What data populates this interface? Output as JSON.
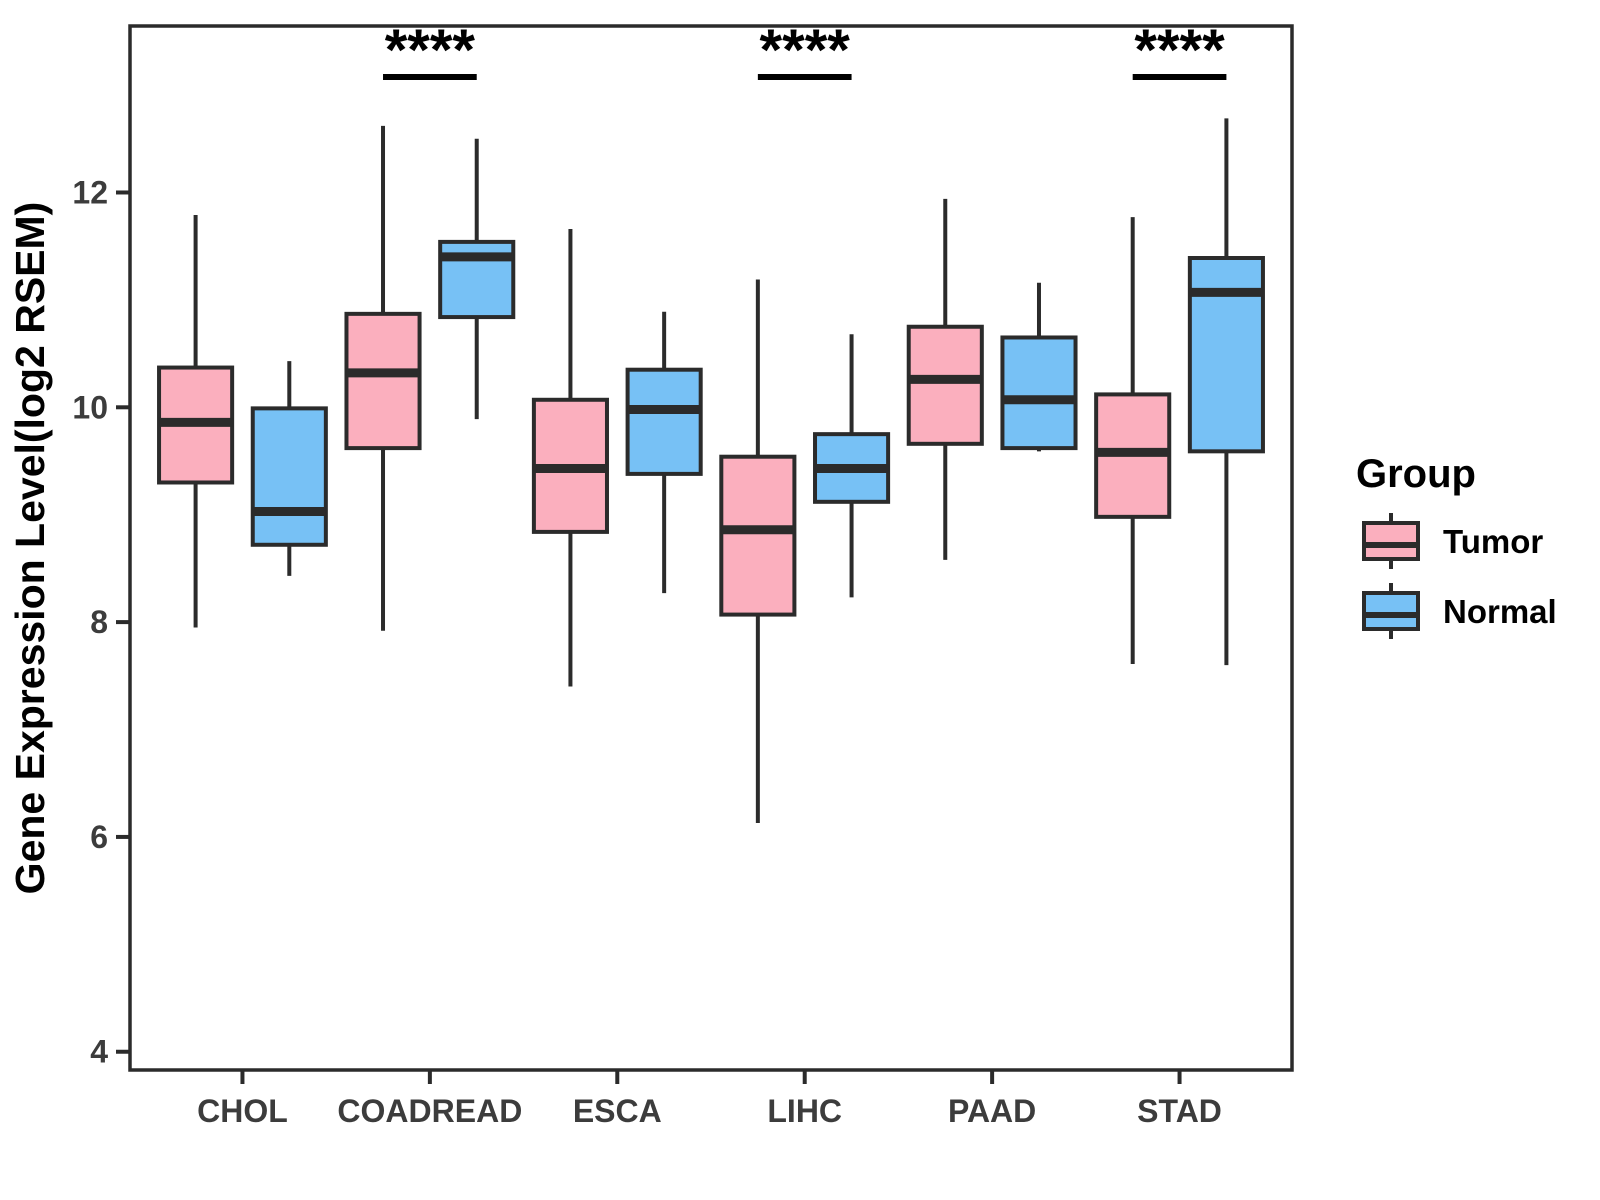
{
  "chart_data": {
    "type": "boxplot",
    "title": "",
    "xlabel": "",
    "ylabel": "Gene Expression Level(log2 RSEM)",
    "categories": [
      "CHOL",
      "COADREAD",
      "ESCA",
      "LIHC",
      "PAAD",
      "STAD"
    ],
    "yticks": [
      4,
      6,
      8,
      10,
      12
    ],
    "ylim": [
      3.83,
      13.55
    ],
    "grid": false,
    "legend_position": "right",
    "series": [
      {
        "name": "Tumor",
        "color": "#FBAFBE",
        "boxes": [
          {
            "min": 7.95,
            "q1": 9.3,
            "median": 9.86,
            "q3": 10.37,
            "max": 11.79
          },
          {
            "min": 7.92,
            "q1": 9.62,
            "median": 10.32,
            "q3": 10.87,
            "max": 12.62
          },
          {
            "min": 7.4,
            "q1": 8.84,
            "median": 9.43,
            "q3": 10.07,
            "max": 11.66
          },
          {
            "min": 6.13,
            "q1": 8.07,
            "median": 8.86,
            "q3": 9.54,
            "max": 11.19
          },
          {
            "min": 8.58,
            "q1": 9.66,
            "median": 10.26,
            "q3": 10.75,
            "max": 11.94
          },
          {
            "min": 7.61,
            "q1": 8.98,
            "median": 9.58,
            "q3": 10.12,
            "max": 11.77
          }
        ]
      },
      {
        "name": "Normal",
        "color": "#77C1F5",
        "boxes": [
          {
            "min": 8.43,
            "q1": 8.72,
            "median": 9.03,
            "q3": 9.99,
            "max": 10.43
          },
          {
            "min": 9.89,
            "q1": 10.84,
            "median": 11.4,
            "q3": 11.54,
            "max": 12.5
          },
          {
            "min": 8.27,
            "q1": 9.38,
            "median": 9.98,
            "q3": 10.35,
            "max": 10.89
          },
          {
            "min": 8.23,
            "q1": 9.12,
            "median": 9.43,
            "q3": 9.75,
            "max": 10.68
          },
          {
            "min": 9.59,
            "q1": 9.62,
            "median": 10.07,
            "q3": 10.65,
            "max": 11.16
          },
          {
            "min": 7.6,
            "q1": 9.59,
            "median": 11.07,
            "q3": 11.39,
            "max": 12.69
          }
        ]
      }
    ],
    "significance": [
      {
        "category": "COADREAD",
        "label": "****"
      },
      {
        "category": "LIHC",
        "label": "****"
      },
      {
        "category": "STAD",
        "label": "****"
      }
    ],
    "legend": {
      "title": "Group",
      "entries": [
        {
          "label": "Tumor",
          "color": "#FBAFBE"
        },
        {
          "label": "Normal",
          "color": "#77C1F5"
        }
      ]
    }
  },
  "styles": {
    "stroke_dark": "#2B2B2B",
    "tick_label_color": "#3C3C3C",
    "axis_title_color": "#000000",
    "significance_color": "#000000",
    "panel_background": "#FFFFFF"
  }
}
